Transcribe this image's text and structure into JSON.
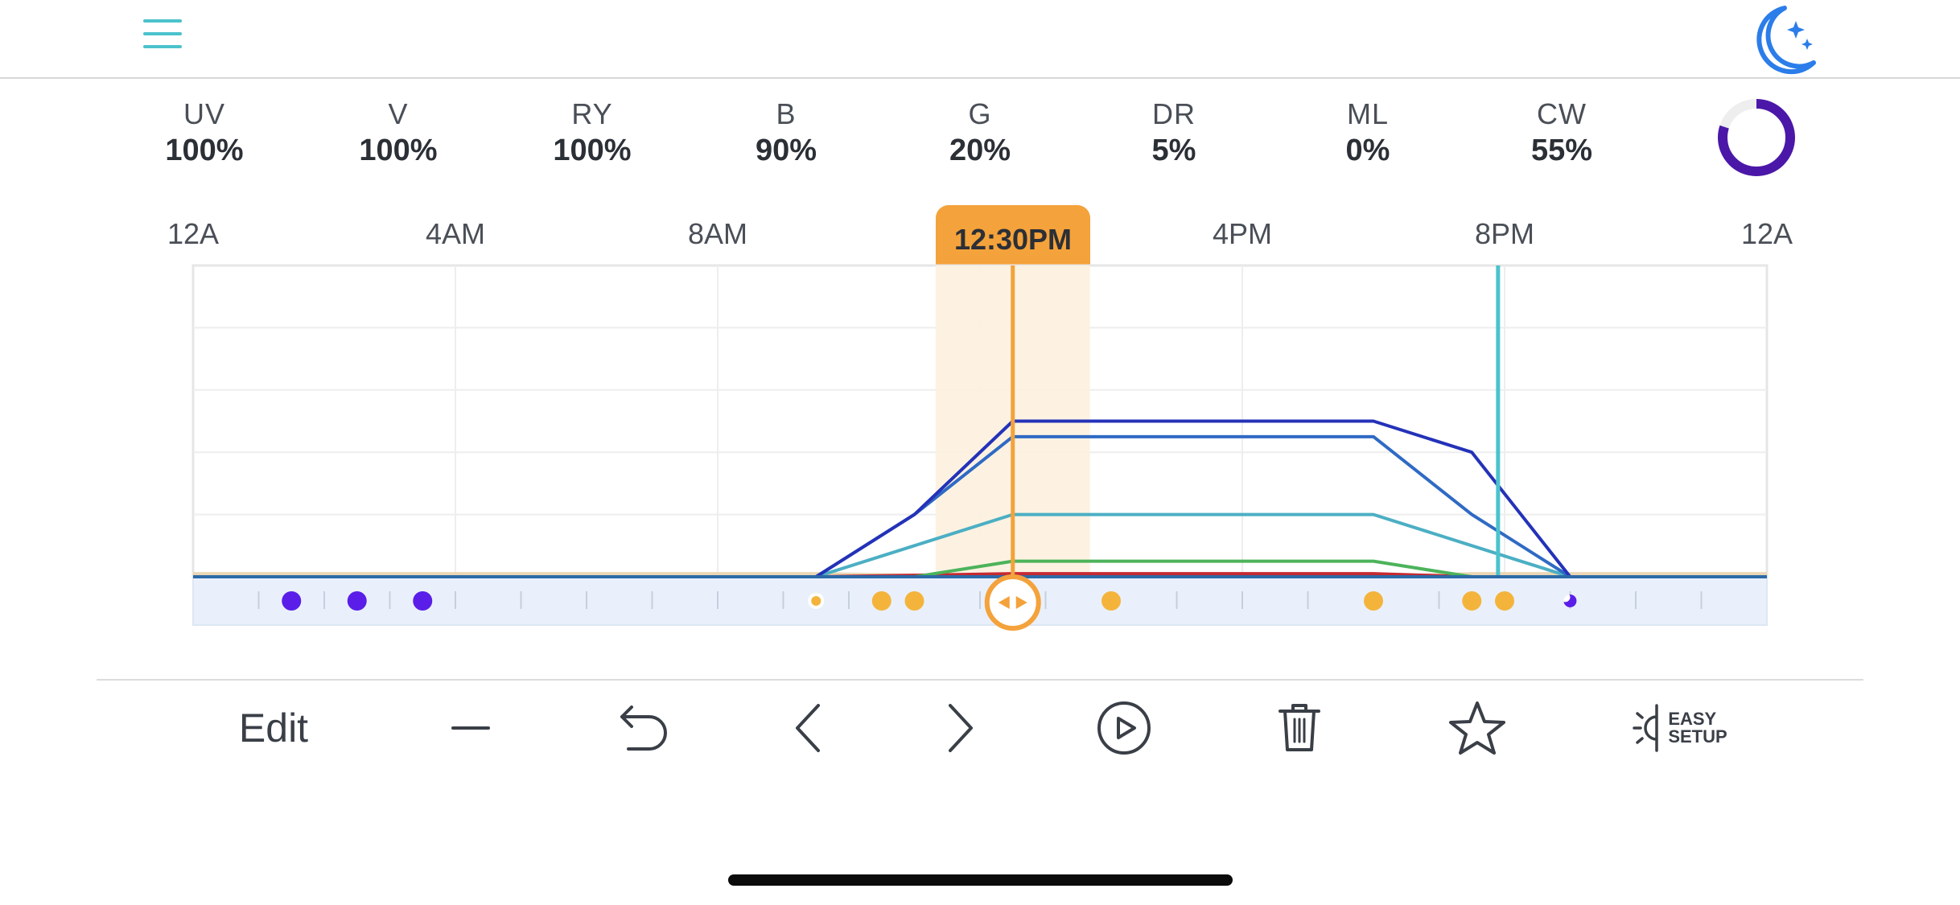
{
  "header": {
    "menu_icon": "hamburger-menu-icon",
    "mode_icon": "moon-stars-icon",
    "accent_color": "#4bc2cc",
    "moon_color": "#2b7de9"
  },
  "channels": [
    {
      "name": "UV",
      "value": "100%"
    },
    {
      "name": "V",
      "value": "100%"
    },
    {
      "name": "RY",
      "value": "100%"
    },
    {
      "name": "B",
      "value": "90%"
    },
    {
      "name": "G",
      "value": "20%"
    },
    {
      "name": "DR",
      "value": "5%"
    },
    {
      "name": "ML",
      "value": "0%"
    },
    {
      "name": "CW",
      "value": "55%"
    }
  ],
  "progress_ring": {
    "fraction": 0.8,
    "color": "#4b17a8"
  },
  "time_axis": {
    "labels": [
      "12A",
      "4AM",
      "8AM",
      "12:30PM",
      "4PM",
      "8PM",
      "12A"
    ]
  },
  "current_time": {
    "label": "12:30PM",
    "color": "#f4a23b"
  },
  "chart_data": {
    "type": "line",
    "x_unit": "hours",
    "xlim": [
      0,
      24
    ],
    "ylim": [
      0,
      100
    ],
    "x_tick_labels": [
      "12A",
      "4AM",
      "8AM",
      "4PM",
      "8PM",
      "12A"
    ],
    "current_time_hour": 12.5,
    "marker_hour": 19.9,
    "series": [
      {
        "color": "#2432b8",
        "x": [
          0,
          9.5,
          11,
          12.5,
          18,
          19.5,
          21,
          24
        ],
        "y": [
          0,
          0,
          20,
          50,
          50,
          40,
          0,
          0
        ]
      },
      {
        "color": "#2f6ac4",
        "x": [
          0,
          9.5,
          11,
          12.5,
          18,
          19.5,
          21,
          24
        ],
        "y": [
          0,
          0,
          20,
          45,
          45,
          20,
          0,
          0
        ]
      },
      {
        "color": "#4bafc4",
        "x": [
          0,
          9.5,
          11,
          12.5,
          18,
          19.5,
          21,
          24
        ],
        "y": [
          0,
          0,
          10,
          20,
          20,
          10,
          0,
          0
        ]
      },
      {
        "color": "#4cb35a",
        "x": [
          0,
          11,
          12.5,
          18,
          19.5,
          24
        ],
        "y": [
          0,
          0,
          5,
          5,
          0,
          0
        ]
      },
      {
        "color": "#c62a32",
        "x": [
          0,
          9.5,
          12.5,
          18,
          19.5,
          24
        ],
        "y": [
          0,
          0,
          1,
          1,
          0,
          0
        ]
      },
      {
        "color": "#e9d7b5",
        "x": [
          0,
          9.5,
          12.5,
          18,
          19.5,
          24
        ],
        "y": [
          1,
          1,
          0,
          0,
          1,
          1
        ]
      }
    ],
    "keyframe_dots": [
      {
        "hour": 1.5,
        "kind": "night"
      },
      {
        "hour": 2.5,
        "kind": "night"
      },
      {
        "hour": 3.5,
        "kind": "night"
      },
      {
        "hour": 9.5,
        "kind": "sunrise"
      },
      {
        "hour": 10.5,
        "kind": "day"
      },
      {
        "hour": 11,
        "kind": "day"
      },
      {
        "hour": 14,
        "kind": "day"
      },
      {
        "hour": 18,
        "kind": "day"
      },
      {
        "hour": 19.5,
        "kind": "day"
      },
      {
        "hour": 20,
        "kind": "day"
      },
      {
        "hour": 21,
        "kind": "sunset"
      }
    ],
    "dot_colors": {
      "night": "#5a1ee8",
      "day": "#f4b43c",
      "sunrise": "#f4b43c",
      "sunset": "#5a1ee8"
    }
  },
  "toolbar": {
    "edit_label": "Edit",
    "easy_setup_line1": "EASY",
    "easy_setup_line2": "SETUP",
    "icons": [
      "minus-icon",
      "undo-icon",
      "chevron-left-icon",
      "chevron-right-icon",
      "play-icon",
      "trash-icon",
      "star-icon",
      "easy-setup-icon"
    ]
  }
}
